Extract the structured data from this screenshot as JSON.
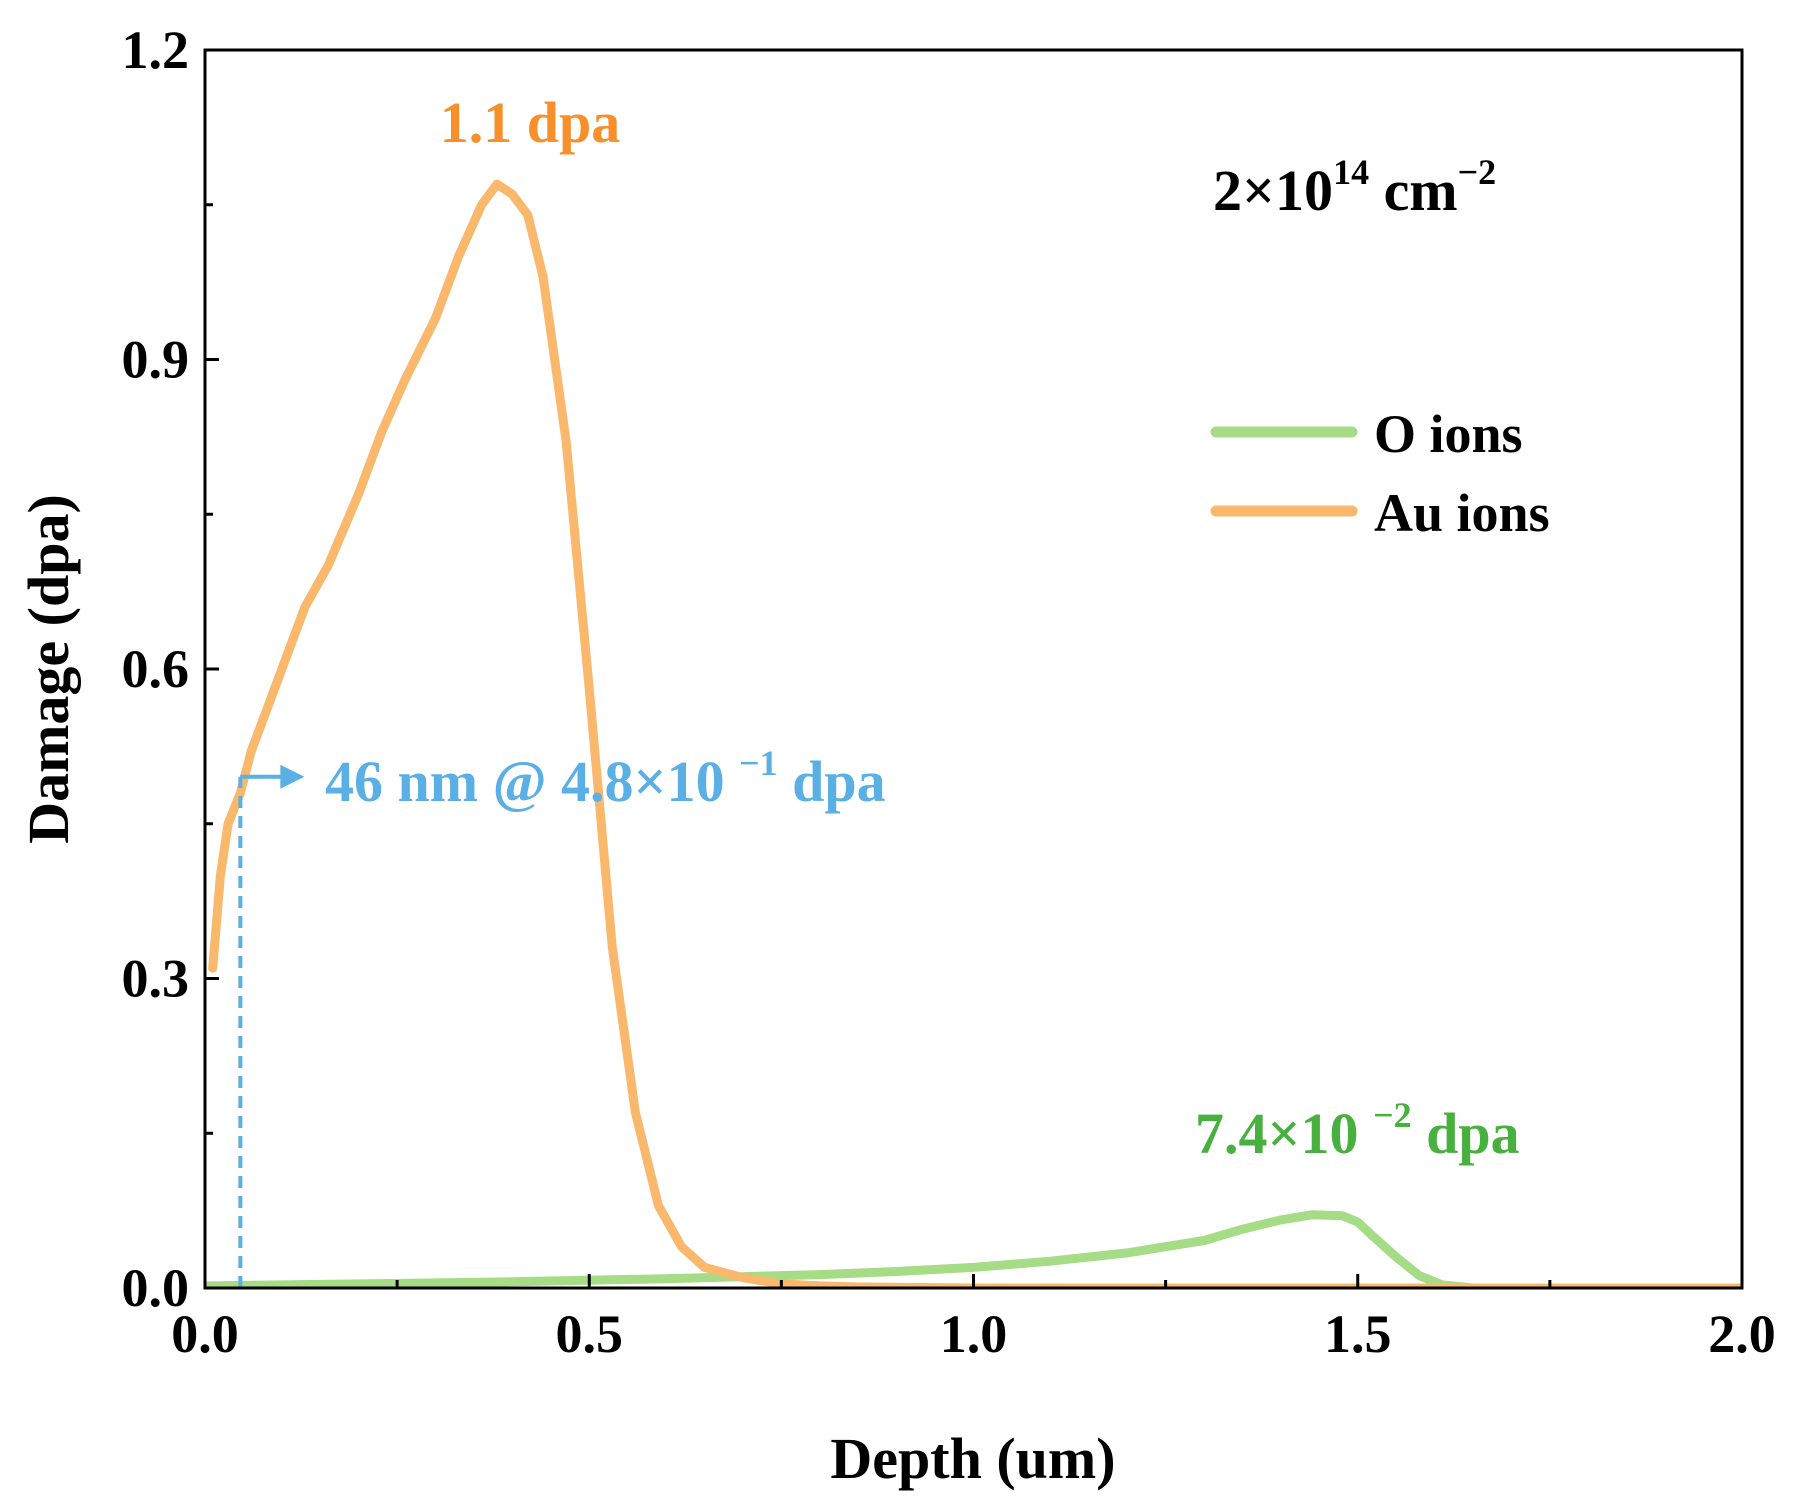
{
  "chart_data": {
    "type": "line",
    "title": "",
    "xlabel": "Depth (um)",
    "ylabel": "Damage (dpa)",
    "xlim": [
      0,
      2.0
    ],
    "ylim": [
      0,
      1.2
    ],
    "x_ticks": [
      0.0,
      0.5,
      1.0,
      1.5,
      2.0
    ],
    "x_tick_labels": [
      "0.0",
      "0.5",
      "1.0",
      "1.5",
      "2.0"
    ],
    "x_minor_ticks": [
      0.25,
      0.75,
      1.25,
      1.75
    ],
    "y_ticks": [
      0.0,
      0.3,
      0.6,
      0.9,
      1.2
    ],
    "y_tick_labels": [
      "0.0",
      "0.3",
      "0.6",
      "0.9",
      "1.2"
    ],
    "y_minor_ticks": [
      0.15,
      0.45,
      0.75,
      1.05
    ],
    "grid": false,
    "legend_position": "upper-right",
    "series": [
      {
        "name": "O ions",
        "color": "#a6dc86",
        "x": [
          0.0,
          0.2,
          0.4,
          0.6,
          0.8,
          0.9,
          1.0,
          1.1,
          1.2,
          1.3,
          1.35,
          1.4,
          1.44,
          1.48,
          1.5,
          1.52,
          1.55,
          1.58,
          1.61,
          1.65,
          2.0
        ],
        "y": [
          0.002,
          0.004,
          0.006,
          0.009,
          0.013,
          0.016,
          0.02,
          0.026,
          0.034,
          0.046,
          0.057,
          0.066,
          0.071,
          0.07,
          0.064,
          0.05,
          0.03,
          0.012,
          0.003,
          0.0,
          0.0
        ]
      },
      {
        "name": "Au ions",
        "color": "#f9b86c",
        "x": [
          0.01,
          0.02,
          0.03,
          0.046,
          0.06,
          0.08,
          0.1,
          0.13,
          0.16,
          0.2,
          0.23,
          0.26,
          0.3,
          0.33,
          0.36,
          0.38,
          0.4,
          0.42,
          0.44,
          0.47,
          0.5,
          0.53,
          0.56,
          0.59,
          0.62,
          0.65,
          0.7,
          0.75,
          0.8,
          0.85,
          1.0,
          2.0
        ],
        "y": [
          0.31,
          0.4,
          0.45,
          0.48,
          0.52,
          0.56,
          0.6,
          0.66,
          0.7,
          0.77,
          0.83,
          0.88,
          0.94,
          1.0,
          1.05,
          1.07,
          1.06,
          1.04,
          0.98,
          0.82,
          0.58,
          0.33,
          0.17,
          0.08,
          0.04,
          0.02,
          0.01,
          0.004,
          0.002,
          0.001,
          0.0,
          0.0
        ]
      }
    ],
    "legend": [
      "O ions",
      "Au ions"
    ],
    "annotations": {
      "fluence": {
        "base": "2×10",
        "exp": "14",
        "unit": " cm",
        "unit_exp": "−2"
      },
      "au_peak": {
        "text": "1.1 dpa",
        "color": "#f7902a",
        "x": 0.37,
        "y": 1.1
      },
      "o_peak": {
        "base": "7.4×10 ",
        "exp": "−2",
        "suffix": " dpa",
        "color": "#47b03f",
        "x": 1.45,
        "y": 0.075
      },
      "marker": {
        "base": "46 nm @ 4.8×10 ",
        "exp": "−1",
        "suffix": " dpa",
        "color": "#5aafe4",
        "x": 0.046,
        "y": 0.48
      }
    }
  }
}
